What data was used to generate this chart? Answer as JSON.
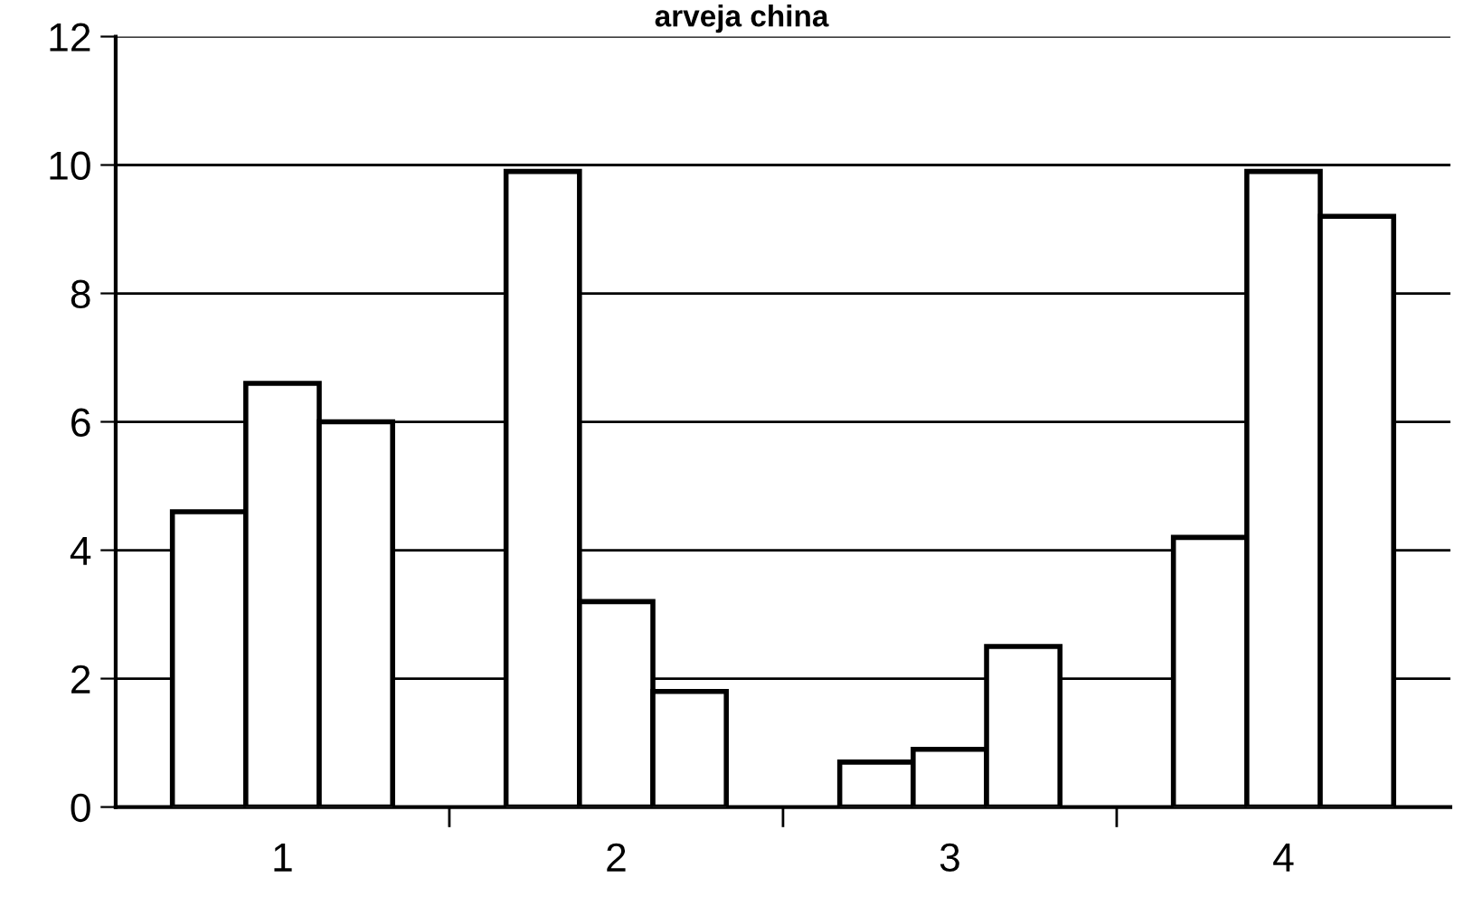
{
  "chart_data": {
    "type": "bar",
    "title": "arveja china",
    "categories": [
      "1",
      "2",
      "3",
      "4"
    ],
    "series": [
      {
        "color": "#ffffff",
        "values": [
          4.6,
          9.9,
          0.7,
          4.2
        ]
      },
      {
        "color": "#ffffff",
        "values": [
          6.6,
          3.2,
          0.9,
          9.9
        ]
      },
      {
        "color": "#ffffff",
        "values": [
          6.0,
          1.8,
          2.5,
          9.2
        ]
      }
    ],
    "ylim": [
      0,
      12
    ],
    "yticks": [
      0,
      2,
      4,
      6,
      8,
      10,
      12
    ],
    "grid": "y",
    "legend": false
  }
}
